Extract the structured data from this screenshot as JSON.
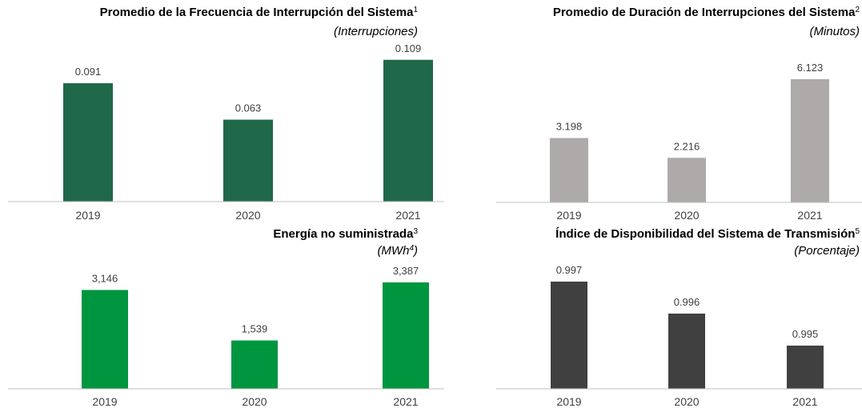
{
  "chart_data": [
    {
      "type": "bar",
      "title": "Promedio de la Frecuencia de Interrupción del Sistema",
      "title_sup": "1",
      "subtitle": "(Interrupciones)",
      "categories": [
        "2019",
        "2020",
        "2021"
      ],
      "values": [
        0.091,
        0.063,
        0.109
      ],
      "color": "#20684a",
      "ylim": [
        0,
        0.123
      ]
    },
    {
      "type": "bar",
      "title": "Promedio de Duración de Interrupciones del Sistema",
      "title_sup": "2",
      "subtitle": "(Minutos)",
      "categories": [
        "2019",
        "2020",
        "2021"
      ],
      "values": [
        3.198,
        2.216,
        6.123
      ],
      "color": "#aeaaaa",
      "ylim": [
        0,
        7.95
      ]
    },
    {
      "type": "bar",
      "title": "Energía no suministrada",
      "title_sup": "3",
      "subtitle": "(MWh",
      "subtitle_sup": "4",
      "subtitle_end": ")",
      "categories": [
        "2019",
        "2020",
        "2021"
      ],
      "values": [
        3146,
        1539,
        3387
      ],
      "value_labels": [
        "3,146",
        "1,539",
        "3,387"
      ],
      "color": "#00963f",
      "ylim": [
        0,
        5093
      ]
    },
    {
      "type": "bar",
      "title": "Índice de Disponibilidad del Sistema de Transmisión",
      "title_sup": "5",
      "subtitle": "(Porcentaje)",
      "categories": [
        "2019",
        "2020",
        "2021"
      ],
      "values": [
        0.997,
        0.996,
        0.995
      ],
      "color": "#404040",
      "ylim": [
        0.99365,
        0.99865
      ]
    }
  ]
}
